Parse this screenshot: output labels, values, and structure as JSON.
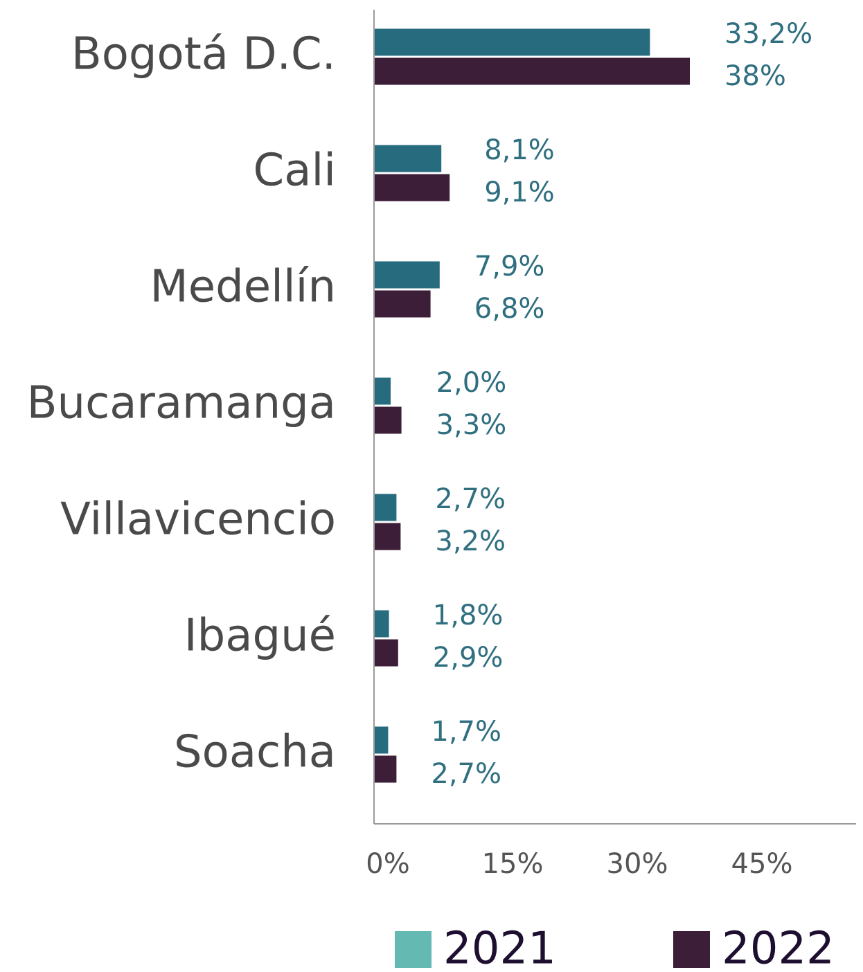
{
  "chart_data": {
    "type": "hbar",
    "categories": [
      "Bogotá D.C.",
      "Cali",
      "Medellín",
      "Bucaramanga",
      "Villavicencio",
      "Ibagué",
      "Soacha"
    ],
    "series": [
      {
        "name": "2021",
        "color": "#276b7e",
        "legend_color": "#64b9b3",
        "values": [
          33.2,
          8.1,
          7.9,
          2.0,
          2.7,
          1.8,
          1.7
        ],
        "value_labels": [
          "33,2%",
          "8,1%",
          "7,9%",
          "2,0%",
          "2,7%",
          "1,8%",
          "1,7%"
        ]
      },
      {
        "name": "2022",
        "color": "#3d1e38",
        "legend_color": "#3d1e38",
        "values": [
          38,
          9.1,
          6.8,
          3.3,
          3.2,
          2.9,
          2.7
        ],
        "value_labels": [
          "38%",
          "9,1%",
          "6,8%",
          "3,3%",
          "3,2%",
          "2,9%",
          "2,7%"
        ]
      }
    ],
    "xlim": [
      0,
      58
    ],
    "xticks": [
      {
        "value": 0,
        "label": "0%"
      },
      {
        "value": 15,
        "label": "15%"
      },
      {
        "value": 30,
        "label": "30%"
      },
      {
        "value": 45,
        "label": "45%"
      }
    ]
  }
}
